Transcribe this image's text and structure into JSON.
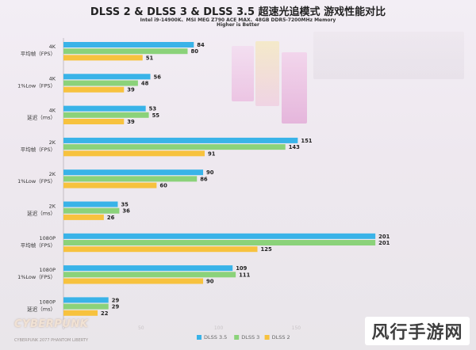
{
  "chart_data": {
    "type": "bar",
    "orientation": "horizontal",
    "title": "DLSS 2 & DLSS 3 & DLSS 3.5 超速光追模式 游戏性能对比",
    "subtitle_lines": [
      "Intel i9-14900K、MSI MEG Z790 ACE MAX、48GB DDR5-7200MHz Memory",
      "Higher is Better"
    ],
    "categories": [
      [
        "4K",
        "平均帧（FPS）"
      ],
      [
        "4K",
        "1%Low（FPS）"
      ],
      [
        "4K",
        "延迟（ms）"
      ],
      [
        "2K",
        "平均帧（FPS）"
      ],
      [
        "2K",
        "1%Low（FPS）"
      ],
      [
        "2K",
        "延迟（ms）"
      ],
      [
        "1080P",
        "平均帧（FPS）"
      ],
      [
        "1080P",
        "1%Low（FPS）"
      ],
      [
        "1080P",
        "延迟（ms）"
      ]
    ],
    "series": [
      {
        "name": "DLSS 3.5",
        "color": "#39b3e8",
        "values": [
          84,
          56,
          53,
          151,
          90,
          35,
          201,
          109,
          29
        ]
      },
      {
        "name": "DLSS 3",
        "color": "#8bd27a",
        "values": [
          80,
          48,
          55,
          143,
          86,
          36,
          201,
          111,
          29
        ]
      },
      {
        "name": "DLSS 2",
        "color": "#f7c23e",
        "values": [
          51,
          39,
          39,
          91,
          60,
          26,
          125,
          90,
          22
        ]
      }
    ],
    "xlim": [
      0,
      250
    ],
    "xticks": [
      0,
      50,
      100,
      150,
      200,
      250
    ],
    "grid": false,
    "legend_position": "bottom-right"
  },
  "branding": {
    "logo": "CYBERPUNK",
    "logo_caption": "CYBERPUNK 2077 PHANTOM LIBERTY",
    "watermark": "风行手游网"
  }
}
